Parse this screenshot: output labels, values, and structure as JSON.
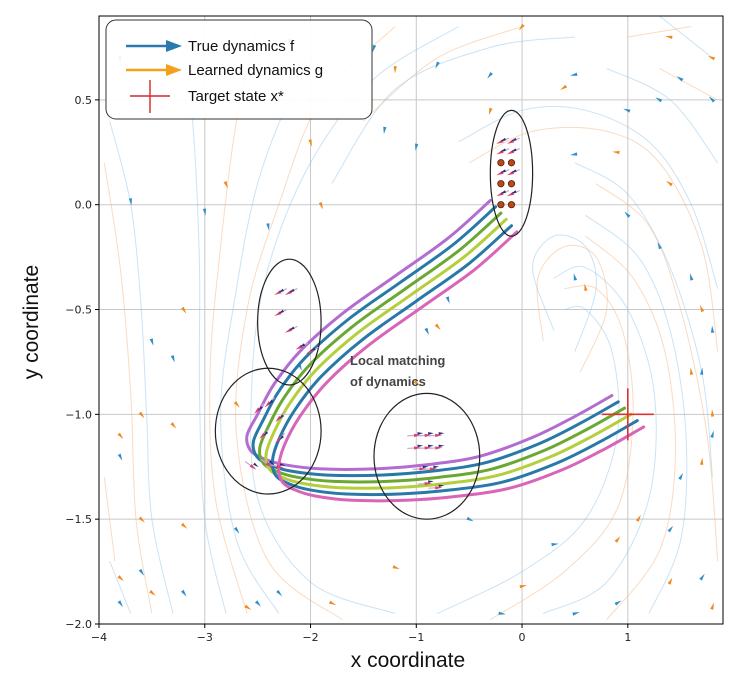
{
  "chart_data": {
    "type": "line",
    "xlabel": "x coordinate",
    "ylabel": "y coordinate",
    "xlim": [
      -4,
      1.9
    ],
    "ylim": [
      -2.0,
      0.9
    ],
    "x_ticks": [
      -4,
      -3,
      -2,
      -1,
      0,
      1
    ],
    "y_ticks": [
      -2.0,
      -1.5,
      -1.0,
      -0.5,
      0.0,
      0.5
    ],
    "x_tick_labels": [
      "−4",
      "−3",
      "−2",
      "−1",
      "0",
      "1"
    ],
    "y_tick_labels": [
      "−2.0",
      "−1.5",
      "−1.0",
      "−0.5",
      "0.0",
      "0.5"
    ],
    "grid": true,
    "legend_position": "top-left",
    "legend": [
      {
        "label": "True dynamics f",
        "marker": "arrow",
        "color": "#2a7ab0"
      },
      {
        "label": "Learned dynamics g",
        "marker": "arrow",
        "color": "#f5a01a"
      },
      {
        "label": "Target state x*",
        "marker": "plus",
        "color": "#d62728"
      }
    ],
    "target": {
      "x": 1.0,
      "y": -1.0
    },
    "annotation": {
      "line1": "Local matching",
      "line2": "of dynamics",
      "x": -1.6,
      "y": -0.74
    },
    "ellipses": [
      {
        "cx": -0.1,
        "cy": 0.15,
        "rx": 0.2,
        "ry": 0.3
      },
      {
        "cx": -2.2,
        "cy": -0.56,
        "rx": 0.3,
        "ry": 0.3
      },
      {
        "cx": -2.4,
        "cy": -1.08,
        "rx": 0.5,
        "ry": 0.3
      },
      {
        "cx": -0.9,
        "cy": -1.2,
        "rx": 0.5,
        "ry": 0.3
      }
    ],
    "series": [
      {
        "color": "#b36ccf",
        "x": [
          -0.3,
          -0.7,
          -1.2,
          -1.7,
          -2.1,
          -2.35,
          -2.5,
          -2.6,
          -2.57,
          -2.45,
          -2.25,
          -1.9,
          -1.4,
          -0.9,
          -0.4,
          0.1,
          0.5,
          0.85
        ],
        "y": [
          0.02,
          -0.16,
          -0.34,
          -0.52,
          -0.7,
          -0.86,
          -1.0,
          -1.1,
          -1.17,
          -1.21,
          -1.24,
          -1.26,
          -1.26,
          -1.24,
          -1.2,
          -1.11,
          -1.01,
          -0.91
        ]
      },
      {
        "color": "#2878a8",
        "x": [
          -0.25,
          -0.65,
          -1.15,
          -1.65,
          -2.05,
          -2.3,
          -2.45,
          -2.54,
          -2.51,
          -2.39,
          -2.19,
          -1.84,
          -1.34,
          -0.84,
          -0.34,
          0.16,
          0.56,
          0.91
        ],
        "y": [
          -0.01,
          -0.19,
          -0.37,
          -0.55,
          -0.73,
          -0.89,
          -1.03,
          -1.13,
          -1.2,
          -1.24,
          -1.27,
          -1.29,
          -1.29,
          -1.27,
          -1.23,
          -1.14,
          -1.04,
          -0.94
        ]
      },
      {
        "color": "#6aa832",
        "x": [
          -0.2,
          -0.6,
          -1.1,
          -1.6,
          -2.0,
          -2.25,
          -2.4,
          -2.48,
          -2.45,
          -2.33,
          -2.13,
          -1.78,
          -1.28,
          -0.78,
          -0.28,
          0.22,
          0.62,
          0.97
        ],
        "y": [
          -0.04,
          -0.22,
          -0.4,
          -0.58,
          -0.76,
          -0.92,
          -1.06,
          -1.16,
          -1.23,
          -1.27,
          -1.3,
          -1.32,
          -1.32,
          -1.3,
          -1.26,
          -1.17,
          -1.07,
          -0.97
        ]
      },
      {
        "color": "#b5ce3c",
        "x": [
          -0.15,
          -0.55,
          -1.05,
          -1.55,
          -1.95,
          -2.2,
          -2.35,
          -2.42,
          -2.39,
          -2.27,
          -2.07,
          -1.72,
          -1.22,
          -0.72,
          -0.22,
          0.28,
          0.68,
          1.03
        ],
        "y": [
          -0.07,
          -0.25,
          -0.43,
          -0.61,
          -0.79,
          -0.95,
          -1.09,
          -1.19,
          -1.26,
          -1.3,
          -1.33,
          -1.35,
          -1.35,
          -1.33,
          -1.29,
          -1.2,
          -1.1,
          -1.0
        ]
      },
      {
        "color": "#2878a8",
        "x": [
          -0.1,
          -0.5,
          -1.0,
          -1.5,
          -1.9,
          -2.15,
          -2.3,
          -2.36,
          -2.33,
          -2.21,
          -2.01,
          -1.66,
          -1.16,
          -0.66,
          -0.16,
          0.34,
          0.74,
          1.09
        ],
        "y": [
          -0.1,
          -0.28,
          -0.46,
          -0.64,
          -0.82,
          -0.98,
          -1.12,
          -1.22,
          -1.29,
          -1.33,
          -1.36,
          -1.38,
          -1.38,
          -1.36,
          -1.32,
          -1.23,
          -1.13,
          -1.03
        ]
      },
      {
        "color": "#d865b7",
        "x": [
          -0.05,
          -0.45,
          -0.95,
          -1.45,
          -1.85,
          -2.1,
          -2.25,
          -2.3,
          -2.27,
          -2.15,
          -1.95,
          -1.6,
          -1.1,
          -0.6,
          -0.1,
          0.4,
          0.8,
          1.15
        ],
        "y": [
          -0.13,
          -0.31,
          -0.49,
          -0.67,
          -0.85,
          -1.01,
          -1.15,
          -1.25,
          -1.32,
          -1.36,
          -1.39,
          -1.41,
          -1.41,
          -1.39,
          -1.35,
          -1.26,
          -1.16,
          -1.06
        ]
      }
    ],
    "start_points": {
      "x": [
        -0.2,
        -0.1,
        -0.2,
        -0.1,
        -0.2,
        -0.1
      ],
      "y": [
        0.2,
        0.2,
        0.1,
        0.1,
        0.0,
        0.0
      ]
    },
    "local_arrows": [
      {
        "x": -0.2,
        "y": 0.3
      },
      {
        "x": -0.1,
        "y": 0.3
      },
      {
        "x": -0.2,
        "y": 0.25
      },
      {
        "x": -0.1,
        "y": 0.25
      },
      {
        "x": -0.2,
        "y": 0.15
      },
      {
        "x": -0.1,
        "y": 0.15
      },
      {
        "x": -0.2,
        "y": 0.05
      },
      {
        "x": -0.1,
        "y": 0.05
      },
      {
        "x": -2.3,
        "y": -0.42
      },
      {
        "x": -2.2,
        "y": -0.42
      },
      {
        "x": -2.3,
        "y": -0.52
      },
      {
        "x": -2.2,
        "y": -0.6
      },
      {
        "x": -2.1,
        "y": -0.68
      },
      {
        "x": -2.0,
        "y": -0.7
      },
      {
        "x": -2.5,
        "y": -0.98
      },
      {
        "x": -2.4,
        "y": -0.95
      },
      {
        "x": -2.3,
        "y": -1.02
      },
      {
        "x": -2.45,
        "y": -1.1
      },
      {
        "x": -2.3,
        "y": -1.12
      },
      {
        "x": -2.55,
        "y": -1.25
      },
      {
        "x": -2.4,
        "y": -1.24
      },
      {
        "x": -2.3,
        "y": -1.25
      },
      {
        "x": -1.0,
        "y": -1.1
      },
      {
        "x": -0.9,
        "y": -1.1
      },
      {
        "x": -0.8,
        "y": -1.1
      },
      {
        "x": -1.0,
        "y": -1.16
      },
      {
        "x": -0.9,
        "y": -1.16
      },
      {
        "x": -0.8,
        "y": -1.16
      },
      {
        "x": -0.95,
        "y": -1.26
      },
      {
        "x": -0.85,
        "y": -1.26
      },
      {
        "x": -0.9,
        "y": -1.33
      },
      {
        "x": -0.8,
        "y": -1.35
      }
    ],
    "field_arrows_true": [
      {
        "x": -3.8,
        "y": 0.7
      },
      {
        "x": -3.7,
        "y": 0.02
      },
      {
        "x": -3.5,
        "y": -0.65
      },
      {
        "x": -3.3,
        "y": -0.73
      },
      {
        "x": -3.8,
        "y": -1.2
      },
      {
        "x": -3.6,
        "y": -1.75
      },
      {
        "x": -3.8,
        "y": -1.9
      },
      {
        "x": -3.0,
        "y": -0.03
      },
      {
        "x": -3.2,
        "y": -1.85
      },
      {
        "x": -2.7,
        "y": -1.55
      },
      {
        "x": -2.5,
        "y": -1.9
      },
      {
        "x": -2.3,
        "y": -1.85
      },
      {
        "x": -2.1,
        "y": -0.77
      },
      {
        "x": -2.4,
        "y": -0.1
      },
      {
        "x": -3.3,
        "y": 0.75
      },
      {
        "x": -2.2,
        "y": 0.78
      },
      {
        "x": -1.4,
        "y": 0.75
      },
      {
        "x": -0.8,
        "y": 0.67
      },
      {
        "x": -0.3,
        "y": 0.62
      },
      {
        "x": 0.5,
        "y": 0.62
      },
      {
        "x": 1.0,
        "y": 0.45
      },
      {
        "x": 1.3,
        "y": 0.5
      },
      {
        "x": 1.5,
        "y": 0.6
      },
      {
        "x": 1.8,
        "y": 0.5
      },
      {
        "x": -1.3,
        "y": 0.36
      },
      {
        "x": -1.0,
        "y": 0.28
      },
      {
        "x": 0.5,
        "y": 0.24
      },
      {
        "x": 1.0,
        "y": -0.05
      },
      {
        "x": 1.3,
        "y": -0.2
      },
      {
        "x": 1.6,
        "y": -0.35
      },
      {
        "x": 1.8,
        "y": -0.6
      },
      {
        "x": 1.7,
        "y": -0.8
      },
      {
        "x": 1.8,
        "y": -1.1
      },
      {
        "x": 1.5,
        "y": -1.3
      },
      {
        "x": 1.4,
        "y": -1.55
      },
      {
        "x": 1.7,
        "y": -1.78
      },
      {
        "x": 0.9,
        "y": -1.9
      },
      {
        "x": 0.5,
        "y": -1.95
      },
      {
        "x": -0.2,
        "y": -1.95
      },
      {
        "x": 0.3,
        "y": -1.62
      },
      {
        "x": -0.5,
        "y": -1.5
      },
      {
        "x": 0.5,
        "y": -0.35
      },
      {
        "x": -0.9,
        "y": -0.6
      },
      {
        "x": -0.7,
        "y": -0.45
      }
    ],
    "field_arrows_learned": [
      {
        "x": -3.8,
        "y": -1.78
      },
      {
        "x": -3.6,
        "y": -1.5
      },
      {
        "x": -3.5,
        "y": -1.85
      },
      {
        "x": -3.2,
        "y": -1.53
      },
      {
        "x": -3.6,
        "y": -1.0
      },
      {
        "x": -3.8,
        "y": -1.1
      },
      {
        "x": -3.3,
        "y": -1.05
      },
      {
        "x": -2.8,
        "y": 0.1
      },
      {
        "x": -2.0,
        "y": 0.3
      },
      {
        "x": -1.9,
        "y": 0.0
      },
      {
        "x": -1.2,
        "y": 0.65
      },
      {
        "x": -0.3,
        "y": 0.45
      },
      {
        "x": 0.0,
        "y": 0.85
      },
      {
        "x": 0.4,
        "y": 0.56
      },
      {
        "x": 0.9,
        "y": 0.25
      },
      {
        "x": 1.4,
        "y": 0.8
      },
      {
        "x": 1.8,
        "y": 0.7
      },
      {
        "x": 1.4,
        "y": 0.1
      },
      {
        "x": 1.7,
        "y": -0.5
      },
      {
        "x": 1.6,
        "y": -0.8
      },
      {
        "x": 1.8,
        "y": -1.0
      },
      {
        "x": 1.7,
        "y": -1.23
      },
      {
        "x": 1.1,
        "y": -1.5
      },
      {
        "x": 1.4,
        "y": -1.8
      },
      {
        "x": 1.8,
        "y": -1.92
      },
      {
        "x": 0.9,
        "y": -1.6
      },
      {
        "x": 0.0,
        "y": -1.82
      },
      {
        "x": -1.2,
        "y": -1.73
      },
      {
        "x": -1.8,
        "y": -1.9
      },
      {
        "x": -2.6,
        "y": -1.92
      },
      {
        "x": -2.7,
        "y": -0.95
      },
      {
        "x": -1.0,
        "y": -0.85
      },
      {
        "x": -0.8,
        "y": -0.58
      },
      {
        "x": 0.5,
        "y": -1.1
      },
      {
        "x": 0.6,
        "y": -0.4
      },
      {
        "x": -3.2,
        "y": -0.5
      }
    ],
    "streamlines_true": [
      [
        [
          -3.9,
          0.4
        ],
        [
          -3.7,
          0.0
        ],
        [
          -3.6,
          -0.5
        ],
        [
          -3.55,
          -1.0
        ],
        [
          -3.5,
          -1.5
        ],
        [
          -3.3,
          -1.95
        ]
      ],
      [
        [
          -3.2,
          0.85
        ],
        [
          -3.1,
          0.3
        ],
        [
          -3.05,
          -0.3
        ],
        [
          -3.05,
          -0.9
        ],
        [
          -3.0,
          -1.5
        ],
        [
          -2.8,
          -1.95
        ]
      ],
      [
        [
          -1.8,
          0.85
        ],
        [
          -2.2,
          0.5
        ],
        [
          -2.5,
          0.1
        ],
        [
          -2.7,
          -0.4
        ],
        [
          -2.85,
          -1.0
        ],
        [
          -2.7,
          -1.6
        ],
        [
          -2.3,
          -1.95
        ]
      ],
      [
        [
          -0.6,
          0.85
        ],
        [
          -1.4,
          0.6
        ],
        [
          -2.0,
          0.2
        ],
        [
          -2.4,
          -0.3
        ],
        [
          -2.55,
          -0.8
        ],
        [
          -2.5,
          -1.4
        ],
        [
          -2.0,
          -1.8
        ],
        [
          -1.2,
          -1.95
        ]
      ],
      [
        [
          0.5,
          0.8
        ],
        [
          -0.3,
          0.75
        ],
        [
          -1.2,
          0.55
        ],
        [
          -1.8,
          0.1
        ]
      ],
      [
        [
          1.8,
          0.7
        ],
        [
          1.3,
          0.9
        ]
      ],
      [
        [
          1.85,
          0.2
        ],
        [
          1.4,
          0.5
        ],
        [
          0.8,
          0.65
        ]
      ],
      [
        [
          1.85,
          -0.4
        ],
        [
          1.6,
          0.0
        ],
        [
          1.2,
          0.3
        ],
        [
          0.6,
          0.45
        ],
        [
          0.0,
          0.45
        ],
        [
          -0.6,
          0.3
        ]
      ],
      [
        [
          1.8,
          -1.3
        ],
        [
          1.7,
          -0.8
        ],
        [
          1.4,
          -0.3
        ],
        [
          1.0,
          0.05
        ],
        [
          0.5,
          0.2
        ]
      ],
      [
        [
          1.2,
          -1.95
        ],
        [
          1.5,
          -1.6
        ],
        [
          1.55,
          -1.1
        ],
        [
          1.4,
          -0.6
        ],
        [
          1.1,
          -0.25
        ],
        [
          0.6,
          -0.05
        ]
      ],
      [
        [
          0.2,
          -1.95
        ],
        [
          0.8,
          -1.8
        ],
        [
          1.2,
          -1.4
        ],
        [
          1.25,
          -0.9
        ],
        [
          1.0,
          -0.5
        ],
        [
          0.6,
          -0.3
        ],
        [
          0.3,
          -0.35
        ]
      ],
      [
        [
          -0.8,
          -1.95
        ],
        [
          0.0,
          -1.75
        ],
        [
          0.6,
          -1.5
        ],
        [
          0.9,
          -1.1
        ],
        [
          0.85,
          -0.7
        ],
        [
          0.6,
          -0.5
        ],
        [
          0.4,
          -0.5
        ]
      ],
      [
        [
          0.5,
          -0.7
        ],
        [
          0.7,
          -0.4
        ],
        [
          0.6,
          -0.2
        ],
        [
          0.3,
          -0.15
        ],
        [
          0.1,
          -0.3
        ],
        [
          0.3,
          -0.6
        ]
      ],
      [
        [
          -3.9,
          -1.7
        ],
        [
          -3.7,
          -1.95
        ]
      ],
      [
        [
          -3.9,
          0.85
        ],
        [
          -3.75,
          0.6
        ]
      ]
    ],
    "streamlines_learned": [
      [
        [
          -3.95,
          0.2
        ],
        [
          -3.8,
          -0.3
        ],
        [
          -3.7,
          -0.9
        ],
        [
          -3.65,
          -1.5
        ],
        [
          -3.5,
          -1.95
        ]
      ],
      [
        [
          -2.5,
          0.85
        ],
        [
          -2.7,
          0.4
        ],
        [
          -2.85,
          -0.2
        ],
        [
          -2.95,
          -0.8
        ],
        [
          -2.9,
          -1.4
        ],
        [
          -2.6,
          -1.95
        ]
      ],
      [
        [
          -1.2,
          0.85
        ],
        [
          -1.9,
          0.5
        ],
        [
          -2.3,
          0.0
        ],
        [
          -2.6,
          -0.5
        ],
        [
          -2.7,
          -1.1
        ],
        [
          -2.4,
          -1.7
        ],
        [
          -1.7,
          -1.98
        ]
      ],
      [
        [
          0.0,
          0.85
        ],
        [
          -0.8,
          0.7
        ],
        [
          -1.5,
          0.4
        ]
      ],
      [
        [
          1.6,
          0.85
        ],
        [
          1.0,
          0.8
        ]
      ],
      [
        [
          1.85,
          0.5
        ],
        [
          1.3,
          0.65
        ]
      ],
      [
        [
          1.85,
          -0.7
        ],
        [
          1.7,
          -0.2
        ],
        [
          1.3,
          0.2
        ],
        [
          0.8,
          0.35
        ],
        [
          0.1,
          0.35
        ],
        [
          -0.5,
          0.2
        ]
      ],
      [
        [
          1.85,
          -1.7
        ],
        [
          1.75,
          -1.1
        ],
        [
          1.5,
          -0.5
        ],
        [
          1.2,
          -0.1
        ],
        [
          0.7,
          0.1
        ]
      ],
      [
        [
          0.8,
          -1.98
        ],
        [
          1.3,
          -1.65
        ],
        [
          1.45,
          -1.2
        ],
        [
          1.35,
          -0.7
        ],
        [
          1.05,
          -0.35
        ],
        [
          0.6,
          -0.15
        ]
      ],
      [
        [
          -0.3,
          -1.98
        ],
        [
          0.4,
          -1.75
        ],
        [
          0.9,
          -1.45
        ],
        [
          1.05,
          -1.0
        ],
        [
          0.95,
          -0.6
        ],
        [
          0.7,
          -0.4
        ],
        [
          0.4,
          -0.4
        ]
      ],
      [
        [
          0.55,
          -0.8
        ],
        [
          0.8,
          -0.5
        ],
        [
          0.7,
          -0.25
        ],
        [
          0.4,
          -0.2
        ],
        [
          0.15,
          -0.35
        ],
        [
          0.2,
          -0.65
        ]
      ],
      [
        [
          -3.95,
          -1.3
        ],
        [
          -3.85,
          -1.7
        ]
      ]
    ]
  }
}
